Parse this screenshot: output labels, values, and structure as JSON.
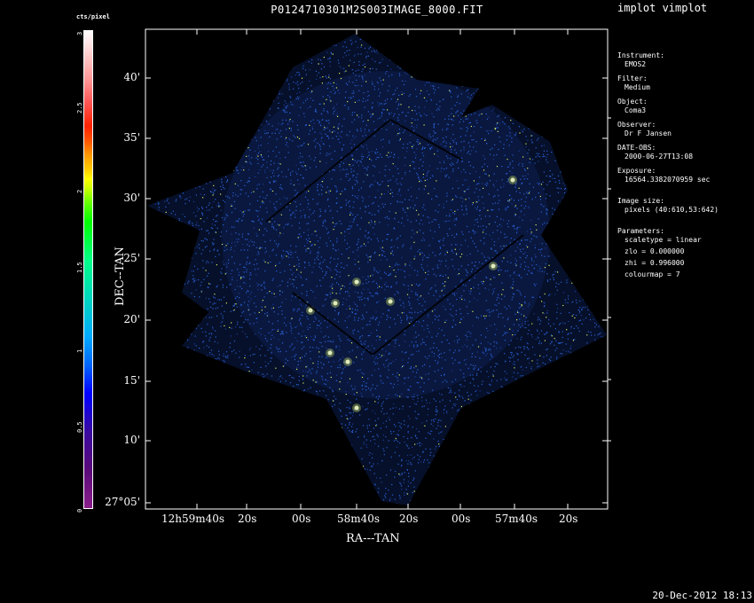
{
  "title": "P0124710301M2S003IMAGE_8000.FIT",
  "program": "implot vimplot",
  "colorbar": {
    "unit": "cts/pixel",
    "ticks": [
      {
        "label": "0",
        "value": 0
      },
      {
        "label": "0.5",
        "value": 0.5
      },
      {
        "label": "1",
        "value": 1
      },
      {
        "label": "1.5",
        "value": 1.5
      },
      {
        "label": "2",
        "value": 2
      },
      {
        "label": "2.5",
        "value": 2.5
      },
      {
        "label": "3",
        "value": 3
      }
    ],
    "range": [
      0,
      3
    ]
  },
  "axes": {
    "ylabel": "DEC--TAN",
    "xlabel": "RA---TAN",
    "yticks": [
      "27°05'",
      "10'",
      "15'",
      "20'",
      "25'",
      "30'",
      "35'",
      "40'"
    ],
    "xticks": [
      "12h59m40s",
      "20s",
      "00s",
      "58m40s",
      "20s",
      "00s",
      "57m40s",
      "20s"
    ]
  },
  "info": {
    "instrument_label": "Instrument:",
    "instrument": "EMOS2",
    "filter_label": "Filter:",
    "filter": "Medium",
    "object_label": "Object:",
    "object": "Coma3",
    "observer_label": "Observer:",
    "observer": "Dr F Jansen",
    "date_label": "DATE-OBS:",
    "date": "2000-06-27T13:08",
    "exposure_label": "Exposure:",
    "exposure": "16564.3382070959 sec",
    "size_label": "Image size:",
    "size": "pixels (40:610,53:642)",
    "params_label": "Parameters:",
    "scaletype": "scaletype = linear",
    "zlo": "zlo = 0.000000",
    "zhi": "zhi = 0.996000",
    "colourmap": "colourmap =   7"
  },
  "timestamp": "20-Dec-2012 18:13",
  "colors": {
    "background": "#000000",
    "foreground": "#ffffff",
    "noise_blue": "#2a5fd6",
    "noise_yellow": "#d8f060"
  }
}
